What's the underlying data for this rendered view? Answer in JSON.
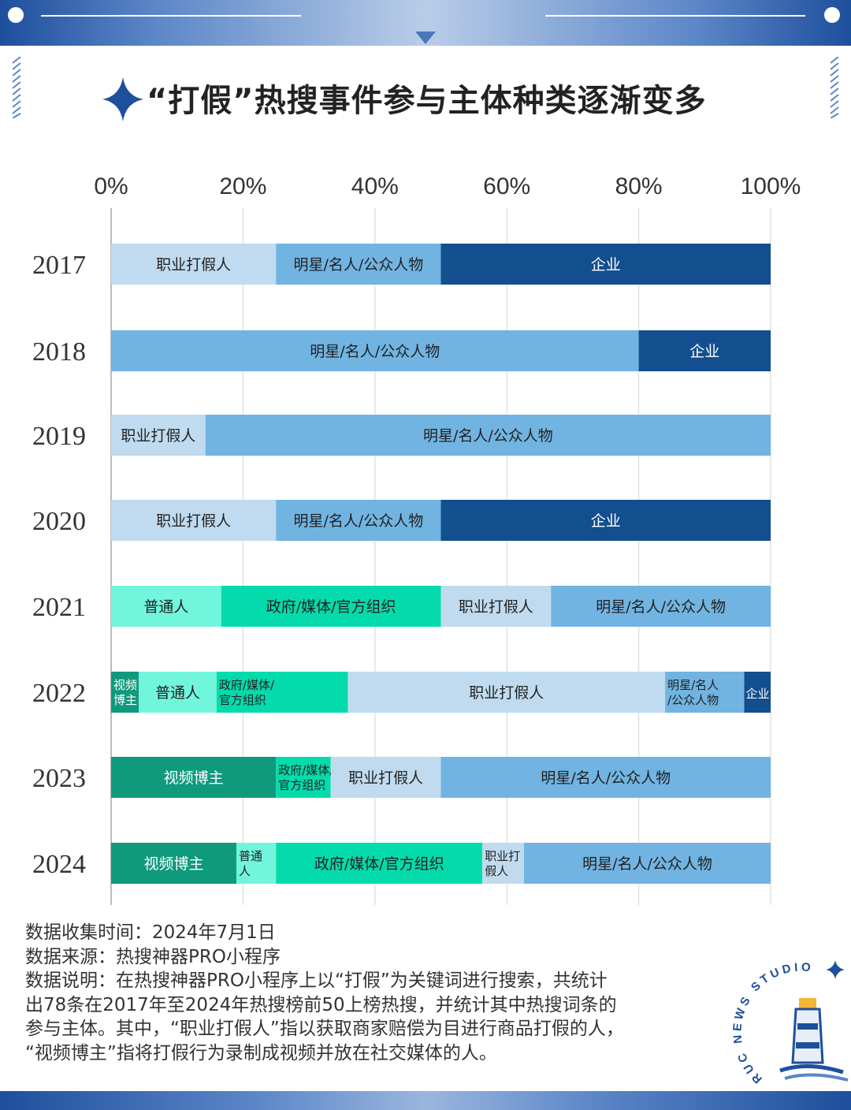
{
  "header": {
    "title": "“打假”热搜事件参与主体种类逐渐变多"
  },
  "chart_data": {
    "type": "bar",
    "orientation": "horizontal",
    "stacked": true,
    "normalized": true,
    "title": "“打假”热搜事件参与主体种类逐渐变多",
    "x_ticks": [
      "0%",
      "20%",
      "40%",
      "60%",
      "80%",
      "100%"
    ],
    "xlim": [
      0,
      100
    ],
    "grid": true,
    "legend": "none (segments labeled inline)",
    "categories": [
      "2017",
      "2018",
      "2019",
      "2020",
      "2021",
      "2022",
      "2023",
      "2024"
    ],
    "colors": {
      "视频博主": "#0f9a7c",
      "普通人": "#72f5dd",
      "政府/媒体/官方组织": "#04dbad",
      "职业打假人": "#c0dbef",
      "明星/名人/公众人物": "#71b4e1",
      "企业": "#134f8e"
    },
    "rows": [
      {
        "year": "2017",
        "segments": [
          {
            "name": "职业打假人",
            "label": "职业打假人",
            "value": 25
          },
          {
            "name": "明星/名人/公众人物",
            "label": "明星/名人/公众人物",
            "value": 25
          },
          {
            "name": "企业",
            "label": "企业",
            "value": 50
          }
        ]
      },
      {
        "year": "2018",
        "segments": [
          {
            "name": "明星/名人/公众人物",
            "label": "明星/名人/公众人物",
            "value": 80
          },
          {
            "name": "企业",
            "label": "企业",
            "value": 20
          }
        ]
      },
      {
        "year": "2019",
        "segments": [
          {
            "name": "职业打假人",
            "label": "职业打假人",
            "value": 14.3
          },
          {
            "name": "明星/名人/公众人物",
            "label": "明星/名人/公众人物",
            "value": 85.7
          }
        ]
      },
      {
        "year": "2020",
        "segments": [
          {
            "name": "职业打假人",
            "label": "职业打假人",
            "value": 25
          },
          {
            "name": "明星/名人/公众人物",
            "label": "明星/名人/公众人物",
            "value": 25
          },
          {
            "name": "企业",
            "label": "企业",
            "value": 50
          }
        ]
      },
      {
        "year": "2021",
        "segments": [
          {
            "name": "普通人",
            "label": "普通人",
            "value": 16.7
          },
          {
            "name": "政府/媒体/官方组织",
            "label": "政府/媒体/官方组织",
            "value": 33.3
          },
          {
            "name": "职业打假人",
            "label": "职业打假人",
            "value": 16.7
          },
          {
            "name": "明星/名人/公众人物",
            "label": "明星/名人/公众人物",
            "value": 33.3
          }
        ]
      },
      {
        "year": "2022",
        "segments": [
          {
            "name": "视频博主",
            "label": [
              "视频",
              "博主"
            ],
            "value": 4.2
          },
          {
            "name": "普通人",
            "label": "普通人",
            "value": 11.8
          },
          {
            "name": "政府/媒体/官方组织",
            "label": [
              "政府/媒体/",
              "官方组织"
            ],
            "value": 19.9
          },
          {
            "name": "职业打假人",
            "label": "职业打假人",
            "value": 48.1
          },
          {
            "name": "明星/名人/公众人物",
            "label": [
              "明星/名人",
              "/公众人物"
            ],
            "value": 12
          },
          {
            "name": "企业",
            "label": "企业",
            "value": 4
          }
        ]
      },
      {
        "year": "2023",
        "segments": [
          {
            "name": "视频博主",
            "label": "视频博主",
            "value": 25
          },
          {
            "name": "政府/媒体/官方组织",
            "label": [
              "政府/媒体/",
              "官方组织"
            ],
            "value": 8.3
          },
          {
            "name": "职业打假人",
            "label": "职业打假人",
            "value": 16.7
          },
          {
            "name": "明星/名人/公众人物",
            "label": "明星/名人/公众人物",
            "value": 50
          }
        ]
      },
      {
        "year": "2024",
        "segments": [
          {
            "name": "视频博主",
            "label": "视频博主",
            "value": 19
          },
          {
            "name": "普通人",
            "label": [
              "普通",
              "人"
            ],
            "value": 6
          },
          {
            "name": "政府/媒体/官方组织",
            "label": "政府/媒体/官方组织",
            "value": 31.3
          },
          {
            "name": "职业打假人",
            "label": [
              "职业打",
              "假人"
            ],
            "value": 6.3
          },
          {
            "name": "明星/名人/公众人物",
            "label": "明星/名人/公众人物",
            "value": 37.4
          }
        ]
      }
    ]
  },
  "notes": {
    "line1": "数据收集时间：2024年7月1日",
    "line2": "数据来源：热搜神器PRO小程序",
    "line3": "数据说明：在热搜神器PRO小程序上以“打假”为关键词进行搜索，共统计",
    "line4": "出78条在2017年至2024年热搜榜前50上榜热搜，并统计其中热搜词条的",
    "line5": "参与主体。其中，“职业打假人”指以获取商家赔偿为目进行商品打假的人，",
    "line6": "“视频博主”指将打假行为录制成视频并放在社交媒体的人。"
  },
  "logo": {
    "arc_text": "RUC NEWS STUDIO",
    "icon": "lighthouse-icon"
  }
}
